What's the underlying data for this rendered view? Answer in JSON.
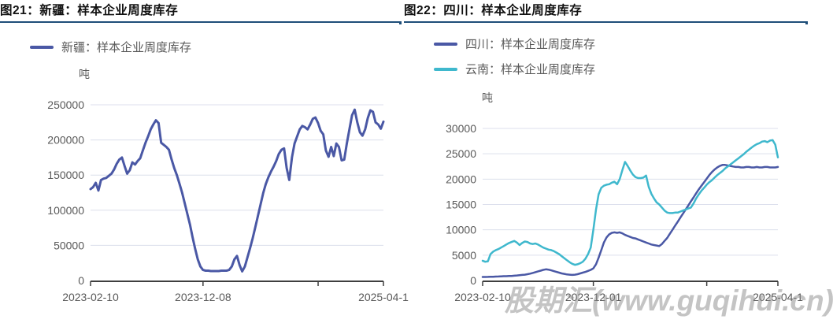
{
  "watermark": {
    "text": "股期汇(www.guqihui.cn)"
  },
  "colors": {
    "indigo": "#4a58a5",
    "cyan": "#3fb8cd",
    "title_underline": "#1f4e79",
    "grid": "#dcdfec",
    "axis": "#3f3f3f",
    "tick_text": "#595959",
    "legend_text": "#595959",
    "title_text": "#111111"
  },
  "chart_data": [
    {
      "type": "line",
      "title": "图21：新疆：样本企业周度库存",
      "unit": "吨",
      "x_start": "2023-02-10",
      "x_end": "2025-04-11",
      "x_freq": "weekly",
      "ylim": [
        0,
        250000
      ],
      "yticks": [
        0,
        50000,
        100000,
        150000,
        200000,
        250000
      ],
      "grid": "horizontal",
      "legend_position": "top-left",
      "xticks": [
        {
          "pos": 0,
          "label": "2023-02-10"
        },
        {
          "pos": 0.384,
          "label": "2023-12-08"
        },
        {
          "pos": 0.777,
          "label": ""
        },
        {
          "pos": 1,
          "label": "2025-04-1"
        }
      ],
      "series": [
        {
          "name": "新疆：样本企业周度库存",
          "color": "#4a58a5",
          "values": [
            130000,
            133000,
            139000,
            128000,
            143000,
            145000,
            146000,
            149000,
            152000,
            158000,
            166000,
            172000,
            175000,
            163000,
            152000,
            157000,
            168000,
            165000,
            170000,
            174000,
            185000,
            196000,
            205000,
            215000,
            222000,
            228000,
            224000,
            196000,
            193000,
            190000,
            186000,
            172000,
            160000,
            150000,
            138000,
            125000,
            110000,
            95000,
            80000,
            62000,
            45000,
            30000,
            20000,
            15000,
            14000,
            14000,
            13500,
            13500,
            13500,
            13500,
            14000,
            14000,
            14000,
            15000,
            20000,
            30000,
            35000,
            22000,
            13000,
            20000,
            33000,
            46000,
            60000,
            76000,
            92000,
            108000,
            124000,
            137000,
            147000,
            155000,
            162000,
            170000,
            180000,
            186000,
            188000,
            160000,
            143000,
            175000,
            195000,
            205000,
            215000,
            220000,
            218000,
            215000,
            222000,
            230000,
            232000,
            224000,
            213000,
            208000,
            185000,
            176000,
            190000,
            177000,
            195000,
            190000,
            171000,
            172000,
            195000,
            215000,
            235000,
            243000,
            225000,
            211000,
            206000,
            215000,
            231000,
            242000,
            240000,
            225000,
            222000,
            216000,
            226000
          ]
        }
      ]
    },
    {
      "type": "line",
      "title": "图22：四川：样本企业周度库存",
      "unit": "吨",
      "x_start": "2023-02-10",
      "x_end": "2025-04-11",
      "x_freq": "weekly",
      "ylim": [
        0,
        30000
      ],
      "yticks": [
        0,
        5000,
        10000,
        15000,
        20000,
        25000,
        30000
      ],
      "grid": "horizontal",
      "legend_position": "top-left",
      "xticks": [
        {
          "pos": 0,
          "label": "2023-02-10"
        },
        {
          "pos": 0.375,
          "label": "2023-12-01"
        },
        {
          "pos": 0.759,
          "label": ""
        },
        {
          "pos": 1,
          "label": "2025-04-1"
        }
      ],
      "series": [
        {
          "name": "四川：样本企业周度库存",
          "color": "#4a58a5",
          "values": [
            700,
            700,
            720,
            750,
            750,
            780,
            800,
            820,
            850,
            850,
            880,
            900,
            950,
            1000,
            1050,
            1100,
            1150,
            1250,
            1350,
            1500,
            1650,
            1800,
            1950,
            2100,
            2200,
            2150,
            2000,
            1850,
            1700,
            1550,
            1400,
            1300,
            1200,
            1150,
            1100,
            1150,
            1250,
            1400,
            1550,
            1700,
            1900,
            2100,
            2400,
            3200,
            4500,
            6000,
            7500,
            8500,
            9100,
            9400,
            9500,
            9400,
            9500,
            9300,
            9000,
            8800,
            8600,
            8400,
            8300,
            8100,
            7900,
            7700,
            7500,
            7300,
            7100,
            7000,
            6900,
            6800,
            7200,
            7800,
            8400,
            9200,
            10000,
            10800,
            11600,
            12400,
            13200,
            14000,
            14800,
            15600,
            16400,
            17200,
            18000,
            18700,
            19400,
            20100,
            20800,
            21400,
            21900,
            22300,
            22600,
            22800,
            22800,
            22700,
            22600,
            22500,
            22400,
            22400,
            22300,
            22300,
            22400,
            22400,
            22300,
            22300,
            22400,
            22300,
            22300,
            22400,
            22400,
            22300,
            22300,
            22300,
            22400
          ]
        },
        {
          "name": "云南：样本企业周度库存",
          "color": "#3fb8cd",
          "values": [
            3900,
            3700,
            3800,
            5200,
            5700,
            6000,
            6200,
            6500,
            6800,
            7100,
            7400,
            7600,
            7800,
            7500,
            7000,
            7400,
            7700,
            7600,
            7300,
            7200,
            7300,
            7100,
            6800,
            6500,
            6300,
            6100,
            6000,
            5800,
            5500,
            5200,
            4800,
            4400,
            4000,
            3600,
            3300,
            3100,
            3200,
            3400,
            3700,
            4300,
            5200,
            6500,
            10000,
            14000,
            17000,
            18300,
            18700,
            18900,
            19000,
            19300,
            19500,
            19000,
            20000,
            21800,
            23400,
            22600,
            21700,
            20900,
            20400,
            20200,
            20200,
            20300,
            20700,
            18500,
            17100,
            16200,
            15400,
            15000,
            14400,
            13800,
            13400,
            13300,
            13300,
            13400,
            13400,
            13600,
            13800,
            14000,
            14200,
            14400,
            15200,
            16200,
            17000,
            17700,
            18300,
            18900,
            19400,
            19800,
            20300,
            20800,
            21200,
            21600,
            22100,
            22500,
            22900,
            23300,
            23700,
            24100,
            24500,
            24900,
            25400,
            25800,
            26200,
            26600,
            26900,
            27100,
            27400,
            27500,
            27300,
            27600,
            27700,
            26800,
            24300
          ]
        }
      ]
    }
  ]
}
